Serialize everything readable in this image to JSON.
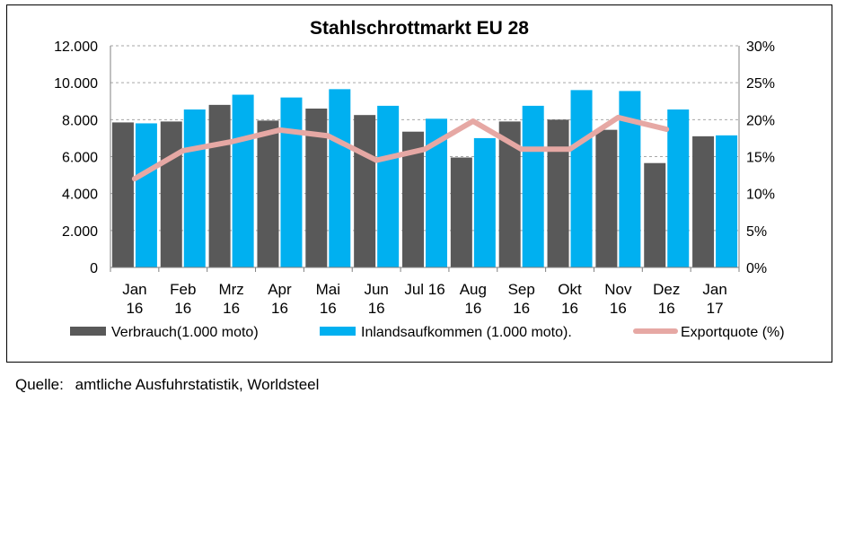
{
  "chart_data": {
    "type": "bar",
    "title": "Stahlschrottmarkt EU 28",
    "categories": [
      [
        "Jan",
        "16"
      ],
      [
        "Feb",
        "16"
      ],
      [
        "Mrz",
        "16"
      ],
      [
        "Apr",
        "16"
      ],
      [
        "Mai",
        "16"
      ],
      [
        "Jun",
        "16"
      ],
      [
        "Jul 16"
      ],
      [
        "Aug",
        "16"
      ],
      [
        "Sep",
        "16"
      ],
      [
        "Okt",
        "16"
      ],
      [
        "Nov",
        "16"
      ],
      [
        "Dez",
        "16"
      ],
      [
        "Jan",
        "17"
      ]
    ],
    "y_left": {
      "min": 0,
      "max": 12000,
      "step": 2000,
      "tick_labels": [
        "0",
        "2.000",
        "4.000",
        "6.000",
        "8.000",
        "10.000",
        "12.000"
      ]
    },
    "y_right": {
      "min": 0,
      "max": 30,
      "step": 5,
      "tick_labels": [
        "0%",
        "5%",
        "10%",
        "15%",
        "20%",
        "25%",
        "30%"
      ]
    },
    "grid": true,
    "legend_position": "bottom",
    "series": [
      {
        "name": "Verbrauch(1.000 moto)",
        "kind": "bar",
        "axis": "left",
        "color": "#595959",
        "values": [
          7850,
          7900,
          8800,
          7950,
          8600,
          8250,
          7350,
          5950,
          7900,
          8000,
          7450,
          5650,
          7100
        ]
      },
      {
        "name": "Inlandsaufkommen (1.000 moto).",
        "kind": "bar",
        "axis": "left",
        "color": "#00b0f0",
        "values": [
          7800,
          8550,
          9350,
          9200,
          9650,
          8750,
          8050,
          7000,
          8750,
          9600,
          9550,
          8550,
          7150
        ]
      },
      {
        "name": "Exportquote (%)",
        "kind": "line",
        "axis": "right",
        "color": "#e6a8a4",
        "values": [
          12,
          15.8,
          17,
          18.6,
          17.8,
          14.5,
          16,
          19.8,
          16,
          16,
          20.3,
          18.7,
          null
        ]
      }
    ]
  },
  "footer": {
    "source_label": "Quelle:",
    "source_text": "amtliche Ausfuhrstatistik, Worldsteel"
  }
}
